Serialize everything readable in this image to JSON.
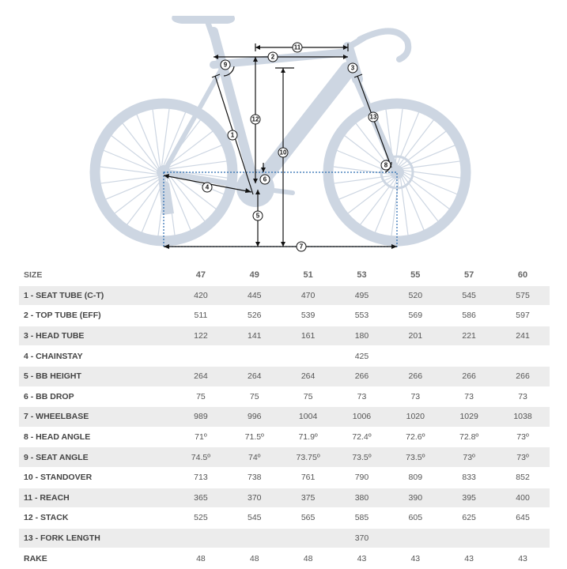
{
  "markers": [
    "1",
    "2",
    "3",
    "4",
    "5",
    "6",
    "7",
    "8",
    "9",
    "10",
    "11",
    "12",
    "13"
  ],
  "table": {
    "size_label": "SIZE",
    "sizes": [
      "47",
      "49",
      "51",
      "53",
      "55",
      "57",
      "60"
    ],
    "rows": [
      {
        "label": "1 - SEAT TUBE (C-T)",
        "values": [
          "420",
          "445",
          "470",
          "495",
          "520",
          "545",
          "575"
        ]
      },
      {
        "label": "2 - TOP TUBE (EFF)",
        "values": [
          "511",
          "526",
          "539",
          "553",
          "569",
          "586",
          "597"
        ]
      },
      {
        "label": "3 - HEAD TUBE",
        "values": [
          "122",
          "141",
          "161",
          "180",
          "201",
          "221",
          "241"
        ]
      },
      {
        "label": "4 - CHAINSTAY",
        "values": [
          "",
          "",
          "",
          "425",
          "",
          "",
          ""
        ]
      },
      {
        "label": "5 - BB HEIGHT",
        "values": [
          "264",
          "264",
          "264",
          "266",
          "266",
          "266",
          "266"
        ]
      },
      {
        "label": "6 - BB DROP",
        "values": [
          "75",
          "75",
          "75",
          "73",
          "73",
          "73",
          "73"
        ]
      },
      {
        "label": "7 - WHEELBASE",
        "values": [
          "989",
          "996",
          "1004",
          "1006",
          "1020",
          "1029",
          "1038"
        ]
      },
      {
        "label": "8 - HEAD ANGLE",
        "values": [
          "71º",
          "71.5º",
          "71.9º",
          "72.4º",
          "72.6º",
          "72.8º",
          "73º"
        ]
      },
      {
        "label": "9 - SEAT ANGLE",
        "values": [
          "74.5º",
          "74º",
          "73.75º",
          "73.5º",
          "73.5º",
          "73º",
          "73º"
        ]
      },
      {
        "label": "10 - STANDOVER",
        "values": [
          "713",
          "738",
          "761",
          "790",
          "809",
          "833",
          "852"
        ]
      },
      {
        "label": "11 - REACH",
        "values": [
          "365",
          "370",
          "375",
          "380",
          "390",
          "395",
          "400"
        ]
      },
      {
        "label": "12 - STACK",
        "values": [
          "525",
          "545",
          "565",
          "585",
          "605",
          "625",
          "645"
        ]
      },
      {
        "label": "13 - FORK LENGTH",
        "values": [
          "",
          "",
          "",
          "370",
          "",
          "",
          ""
        ]
      },
      {
        "label": "RAKE",
        "values": [
          "48",
          "48",
          "48",
          "43",
          "43",
          "43",
          "43"
        ]
      }
    ]
  }
}
